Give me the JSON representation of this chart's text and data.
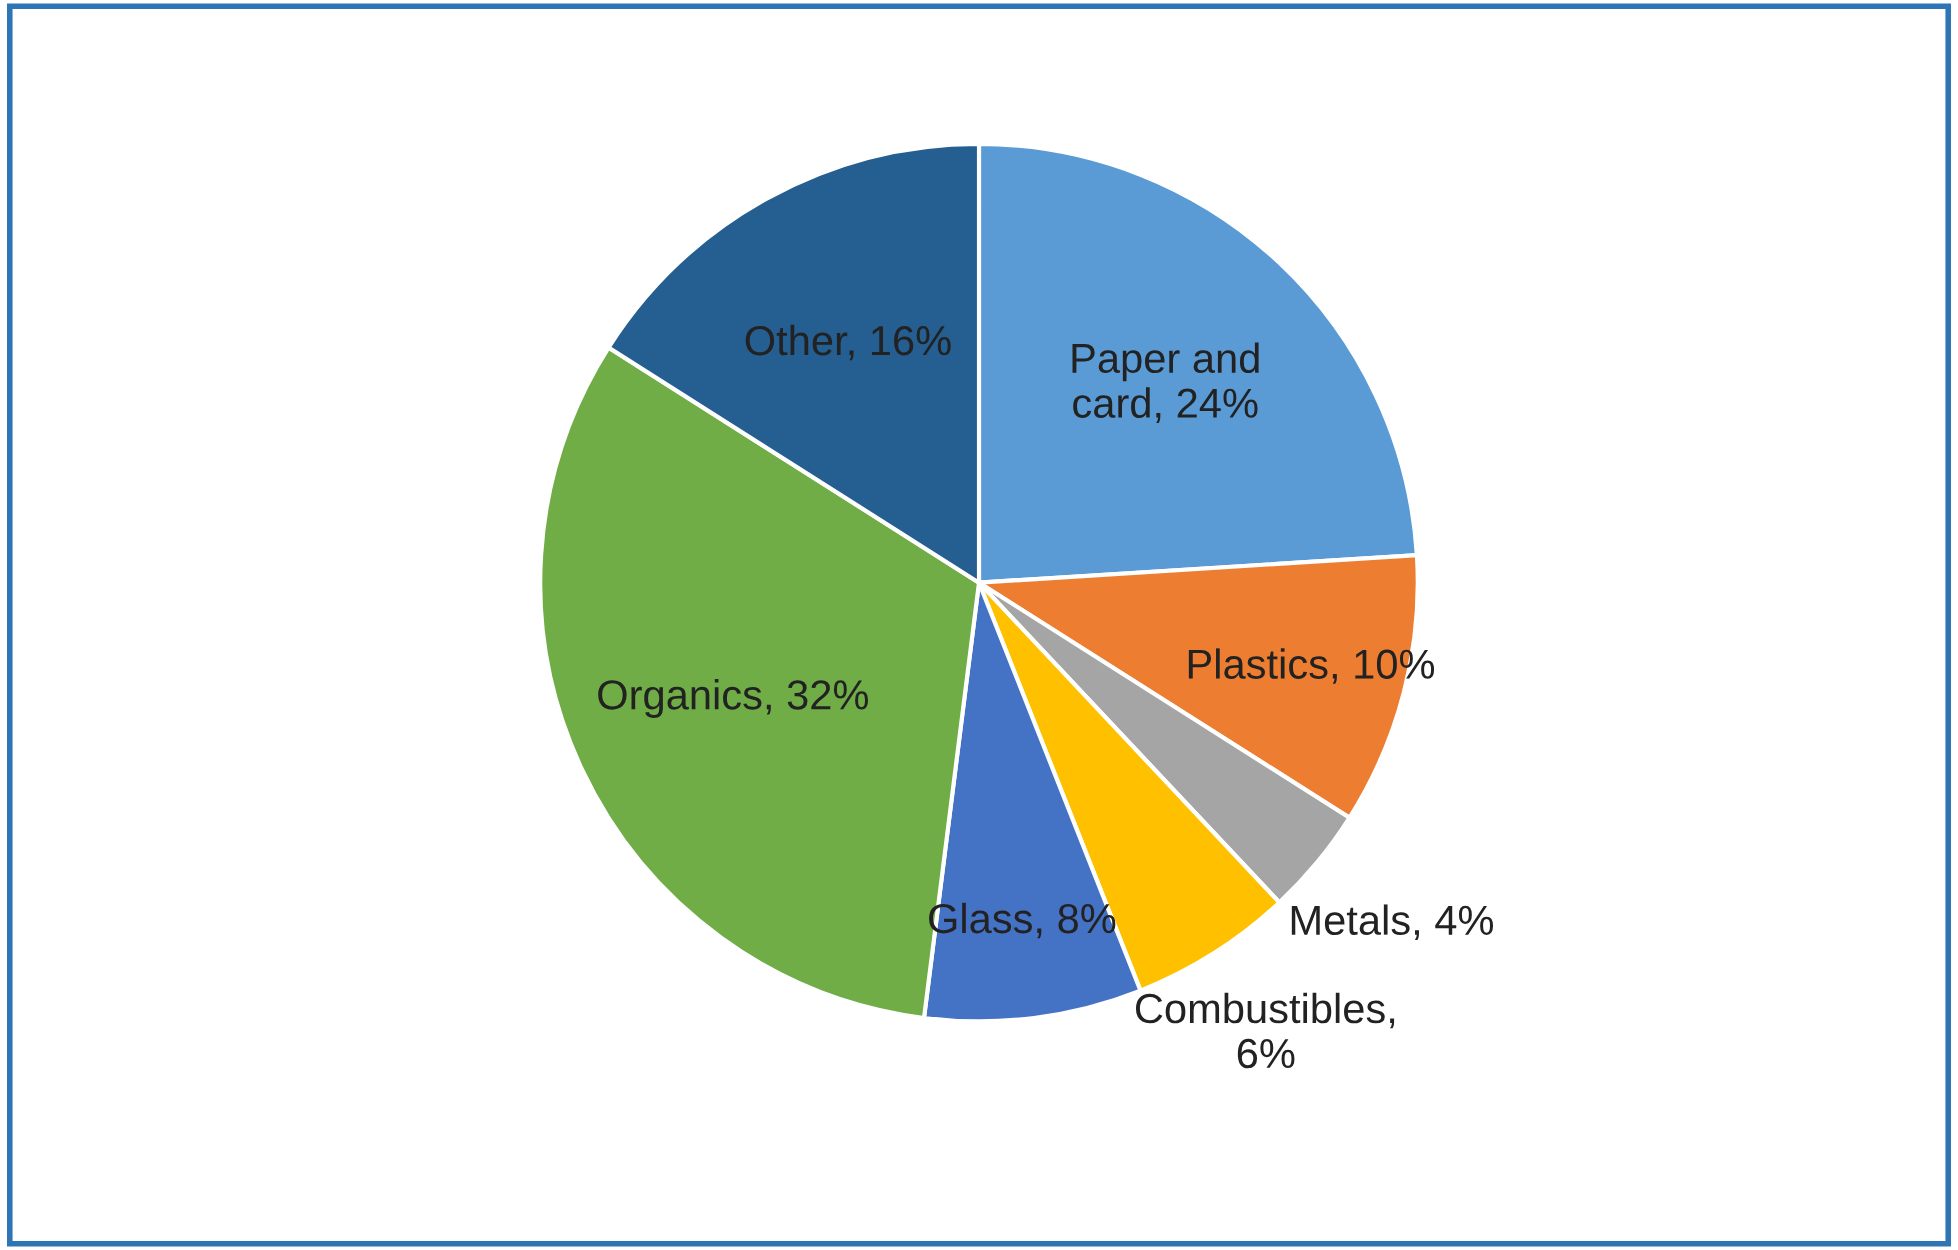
{
  "chart_data": {
    "type": "pie",
    "categories": [
      "Paper and\ncard, 24%",
      "Plastics, 10%",
      "Metals, 4%",
      "Combustibles,\n6%",
      "Glass, 8%",
      "Organics, 32%",
      "Other, 16%"
    ],
    "values": [
      24,
      10,
      4,
      6,
      8,
      32,
      16
    ],
    "colors": [
      "#5b9bd5",
      "#ed7d31",
      "#a5a5a5",
      "#ffc000",
      "#4472c4",
      "#70ad47",
      "#255e91"
    ],
    "legend": false
  }
}
